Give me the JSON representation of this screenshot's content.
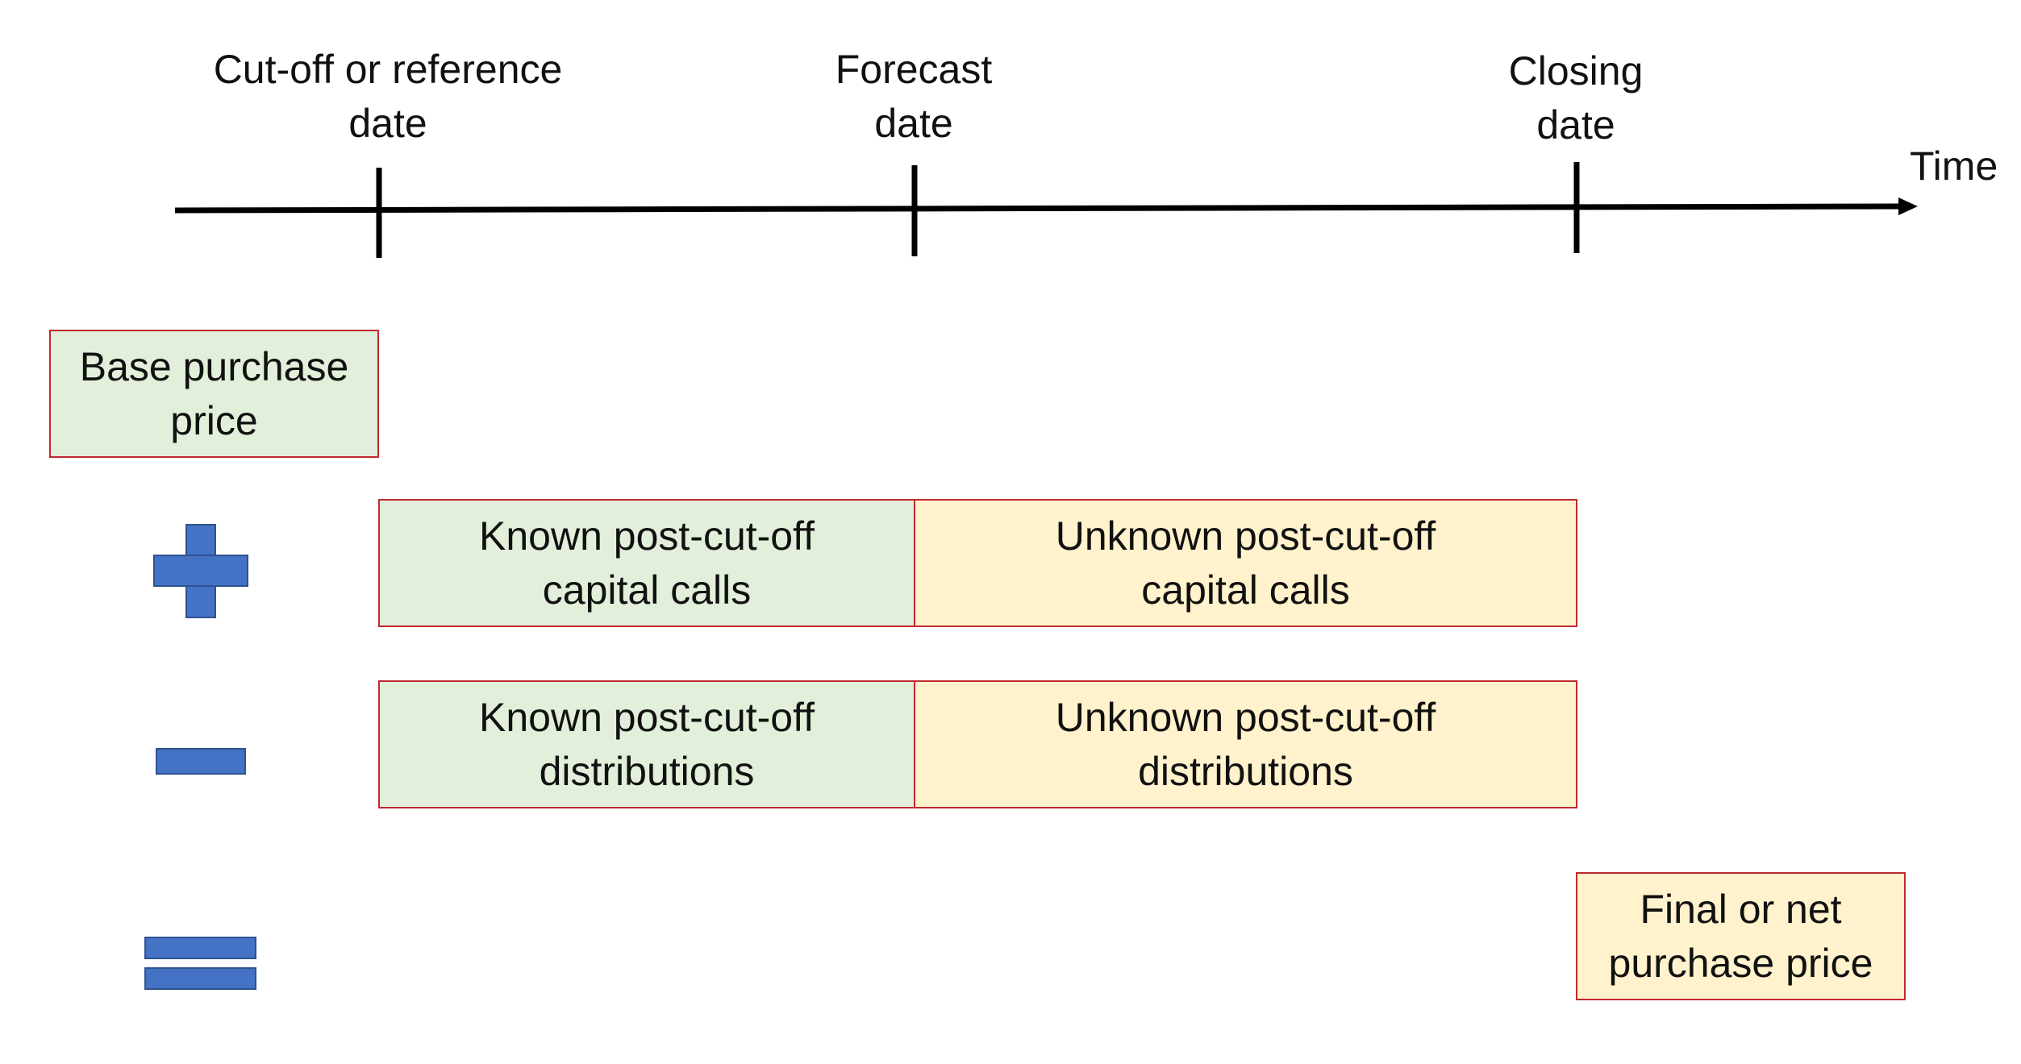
{
  "colors": {
    "known": "#e2efda",
    "unknown": "#fff2cc",
    "border": "#c0292f",
    "operator_fill": "#4472c4",
    "operator_border": "#2f528f",
    "line": "#000000"
  },
  "timeline": {
    "axis_label": "Time",
    "ticks": [
      {
        "label": "Cut-off or reference\ndate"
      },
      {
        "label": "Forecast\ndate"
      },
      {
        "label": "Closing\ndate"
      }
    ]
  },
  "operators": {
    "plus": "plus-icon",
    "minus": "minus-icon",
    "equals": "equals-icon"
  },
  "boxes": {
    "base_purchase_price": "Base purchase\nprice",
    "known_capital_calls": "Known post-cut-off\ncapital calls",
    "unknown_capital_calls": "Unknown post-cut-off\ncapital calls",
    "known_distributions": "Known post-cut-off\ndistributions",
    "unknown_distributions": "Unknown post-cut-off\ndistributions",
    "final_purchase_price": "Final or net\npurchase price"
  }
}
